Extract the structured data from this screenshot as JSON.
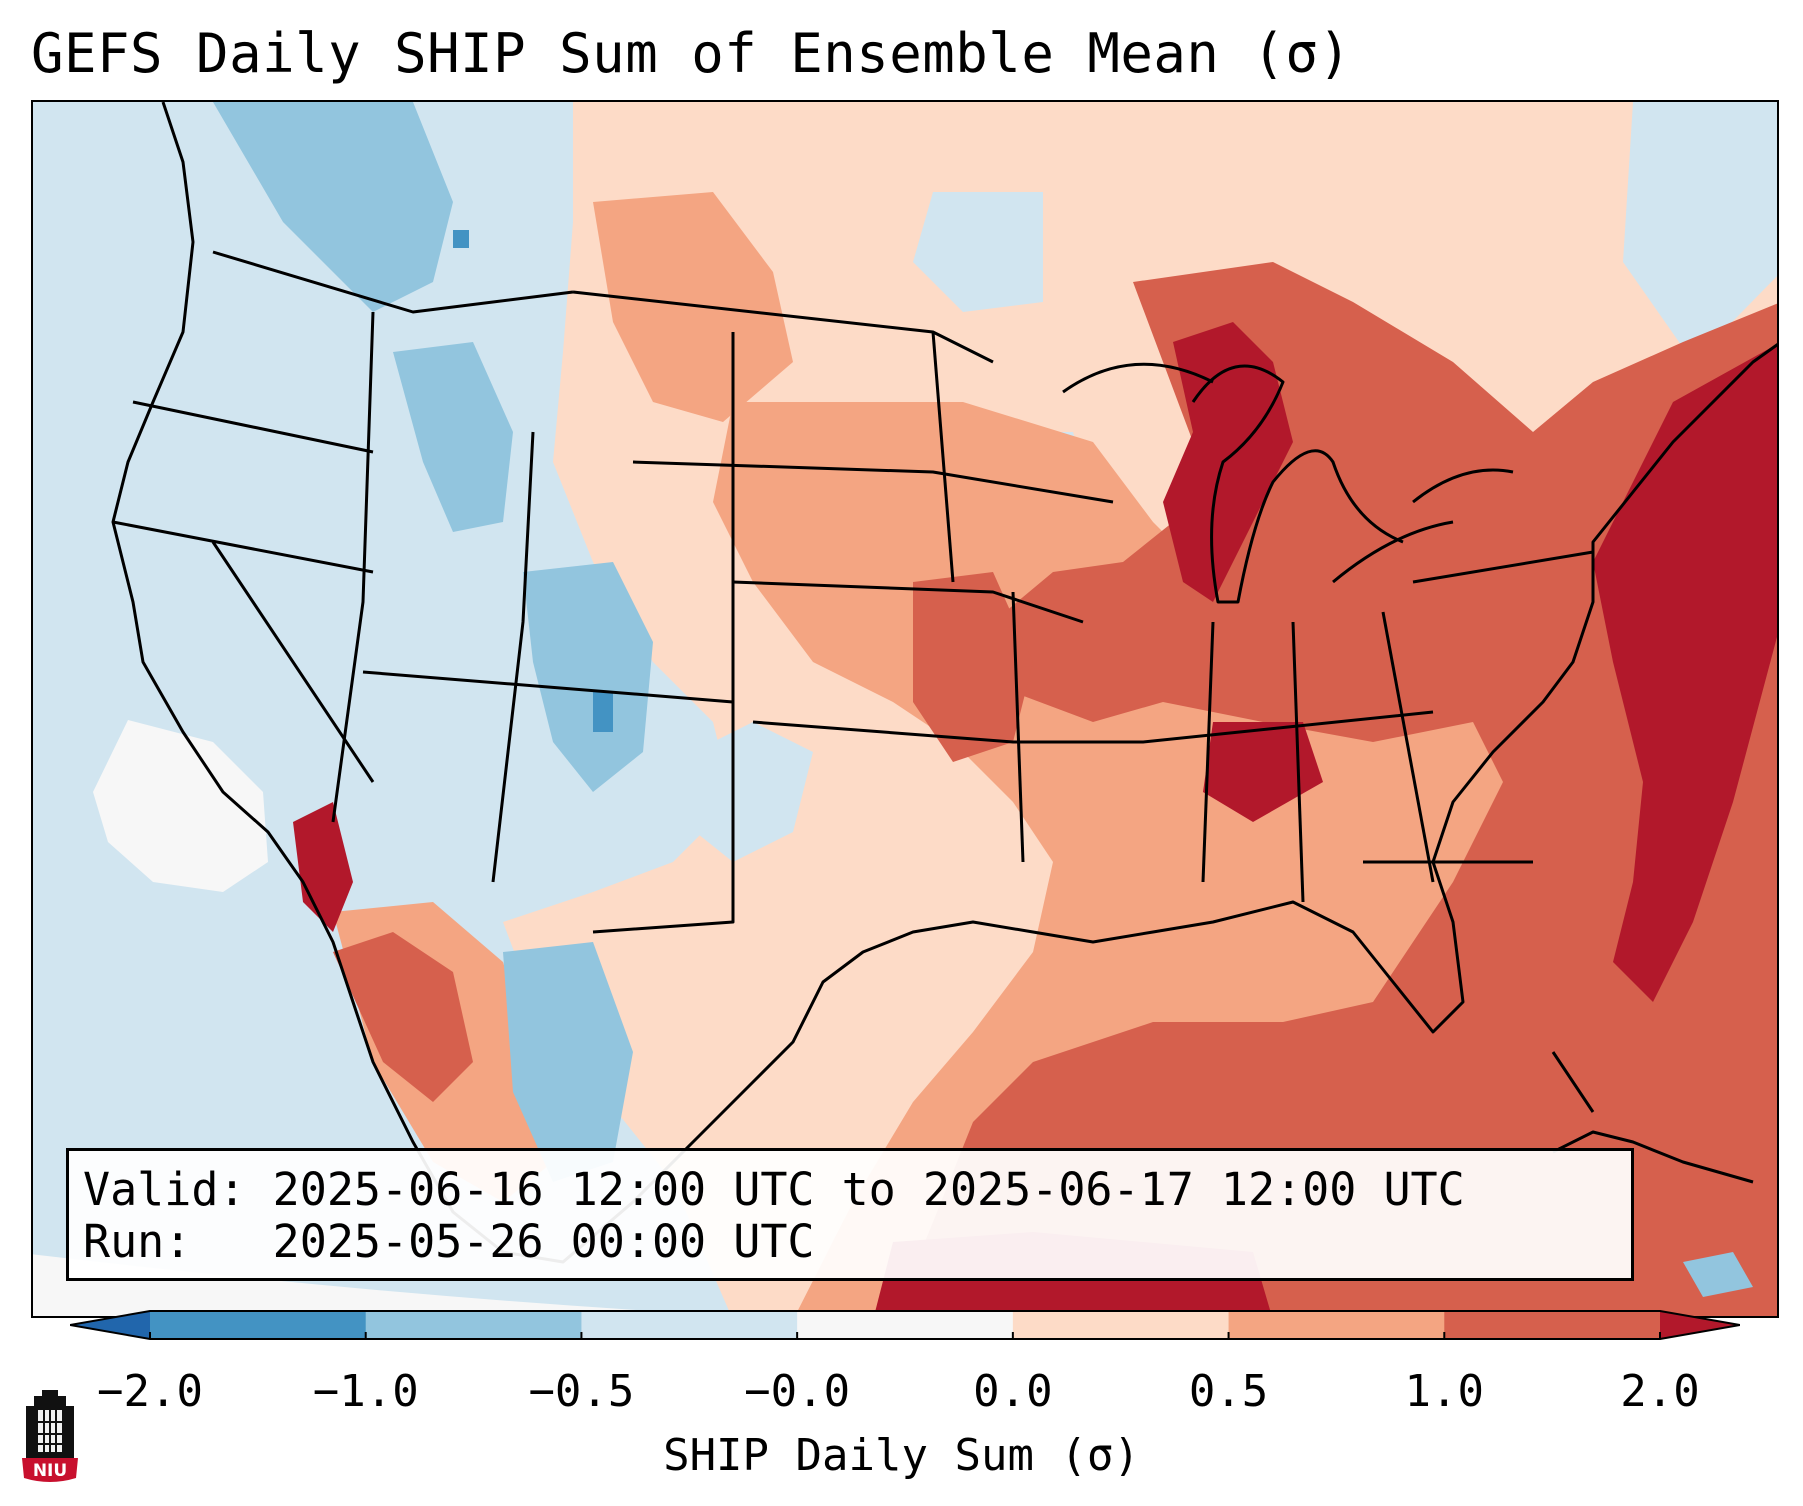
{
  "title": "GEFS Daily SHIP Sum of Ensemble Mean (σ)",
  "info": {
    "valid_label": "Valid:",
    "valid_value": "2025-06-16 12:00 UTC to 2025-06-17 12:00 UTC",
    "run_label": "Run:",
    "run_value": "2025-05-26 00:00 UTC"
  },
  "colorbar": {
    "label": "SHIP Daily Sum (σ)",
    "ticks": [
      "−2.0",
      "−1.0",
      "−0.5",
      "−0.0",
      "0.0",
      "0.5",
      "1.0",
      "2.0"
    ],
    "bins": [
      {
        "from": "−2.0",
        "to": "−1.0",
        "color": "#4393c3"
      },
      {
        "from": "−1.0",
        "to": "−0.5",
        "color": "#92c5de"
      },
      {
        "from": "−0.5",
        "to": "−0.0",
        "color": "#d1e5f0"
      },
      {
        "from": "−0.0",
        "to": "0.0",
        "color": "#f7f7f7"
      },
      {
        "from": "0.0",
        "to": "0.5",
        "color": "#fddbc7"
      },
      {
        "from": "0.5",
        "to": "1.0",
        "color": "#f4a582"
      },
      {
        "from": "1.0",
        "to": "2.0",
        "color": "#d6604d"
      }
    ],
    "under_color": "#2166ac",
    "over_color": "#b2182b"
  },
  "logo": {
    "text": "NIU"
  }
}
